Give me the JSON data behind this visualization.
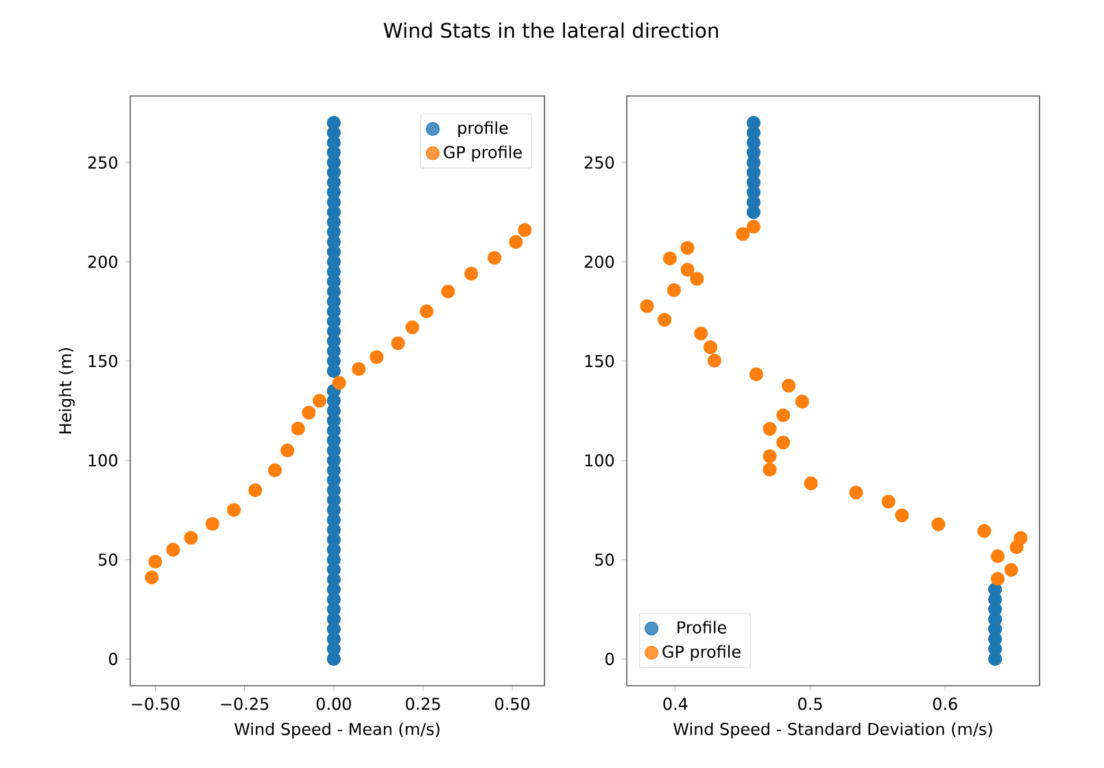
{
  "chart_data": [
    {
      "type": "scatter",
      "title": "Wind Stats in the lateral direction",
      "xlabel": "Wind Speed - Mean (m/s)",
      "ylabel": "Height (m)",
      "marker": "circle",
      "legend": "top right",
      "xlim": [
        -0.57,
        0.59
      ],
      "ylim": [
        -13.5,
        283.5
      ],
      "xticks": [
        {
          "value": -0.5,
          "label": "−0.50"
        },
        {
          "value": -0.25,
          "label": "−0.25"
        },
        {
          "value": 0,
          "label": "0.00"
        },
        0.25,
        {
          "value": 0.5,
          "label": "0.50"
        }
      ],
      "yticks": [
        0,
        50,
        100,
        150,
        200,
        250
      ],
      "series": [
        {
          "name": "profile",
          "color": "#1f77b4",
          "x": [
            0,
            0,
            0,
            0,
            0,
            0,
            0,
            0,
            0,
            0,
            0,
            0,
            0,
            0,
            0,
            0,
            0,
            0,
            0,
            0,
            0,
            0,
            0,
            0,
            0,
            0,
            0,
            0,
            0,
            0,
            0,
            0,
            0,
            0,
            0,
            0,
            0,
            0,
            0,
            0,
            0,
            0,
            0,
            0,
            0,
            0,
            0,
            0,
            0,
            0,
            0,
            0,
            0,
            0
          ],
          "values": [
            0,
            5,
            10,
            15,
            20,
            25,
            30,
            35,
            40,
            45,
            50,
            55,
            60,
            65,
            70,
            75,
            80,
            85,
            90,
            95,
            100,
            105,
            110,
            115,
            120,
            125,
            130,
            135,
            145,
            150,
            155,
            160,
            165,
            170,
            175,
            180,
            185,
            190,
            195,
            200,
            205,
            210,
            215,
            220,
            225,
            230,
            235,
            240,
            245,
            250,
            255,
            260,
            265,
            270
          ]
        },
        {
          "name": "GP profile",
          "color": "#ff7f0e",
          "x": [
            -0.51,
            -0.5,
            -0.45,
            -0.4,
            -0.34,
            -0.28,
            -0.22,
            -0.165,
            -0.13,
            -0.1,
            -0.07,
            -0.04,
            0.015,
            0.07,
            0.12,
            0.18,
            0.22,
            0.26,
            0.32,
            0.385,
            0.45,
            0.51,
            0.535
          ],
          "values": [
            41,
            49,
            55,
            61,
            68,
            75,
            85,
            95,
            105,
            116,
            124,
            130,
            139,
            146,
            152,
            159,
            167,
            175,
            185,
            194,
            202,
            210,
            216
          ]
        }
      ]
    },
    {
      "type": "scatter",
      "xlabel": "Wind Speed - Standard Deviation (m/s)",
      "marker": "circle",
      "legend": "bottom left",
      "xlim": [
        0.364,
        0.67
      ],
      "ylim": [
        -13.5,
        283.5
      ],
      "xticks": [
        0.4,
        0.5,
        0.6
      ],
      "yticks": [
        0,
        50,
        100,
        150,
        200,
        250
      ],
      "series": [
        {
          "name": "Profile",
          "color": "#1f77b4",
          "x": [
            0.637,
            0.637,
            0.637,
            0.637,
            0.637,
            0.637,
            0.637,
            0.637,
            0.458,
            0.458,
            0.458,
            0.458,
            0.458,
            0.458,
            0.458,
            0.458,
            0.458,
            0.458
          ],
          "values": [
            0,
            5,
            10,
            15,
            20,
            25,
            30,
            35,
            225,
            230,
            235,
            240,
            245,
            250,
            255,
            260,
            265,
            270
          ]
        },
        {
          "name": "GP profile",
          "color": "#ff7f0e",
          "x": [
            0.639,
            0.649,
            0.639,
            0.653,
            0.656,
            0.629,
            0.595,
            0.568,
            0.558,
            0.534,
            0.5005,
            0.47,
            0.47,
            0.48,
            0.47,
            0.48,
            0.494,
            0.484,
            0.46,
            0.429,
            0.426,
            0.419,
            0.392,
            0.379,
            0.399,
            0.416,
            0.409,
            0.396,
            0.409,
            0.45,
            0.458
          ],
          "values": [
            40.3,
            44.8,
            51.7,
            56.3,
            60.9,
            64.4,
            67.8,
            72.3,
            79.2,
            83.8,
            88.4,
            95.3,
            102.1,
            109,
            115.9,
            122.7,
            129.6,
            137.6,
            143.3,
            150.2,
            157,
            163.9,
            170.8,
            177.7,
            185.7,
            191.4,
            196,
            201.7,
            207,
            214,
            217.7
          ]
        }
      ]
    }
  ]
}
